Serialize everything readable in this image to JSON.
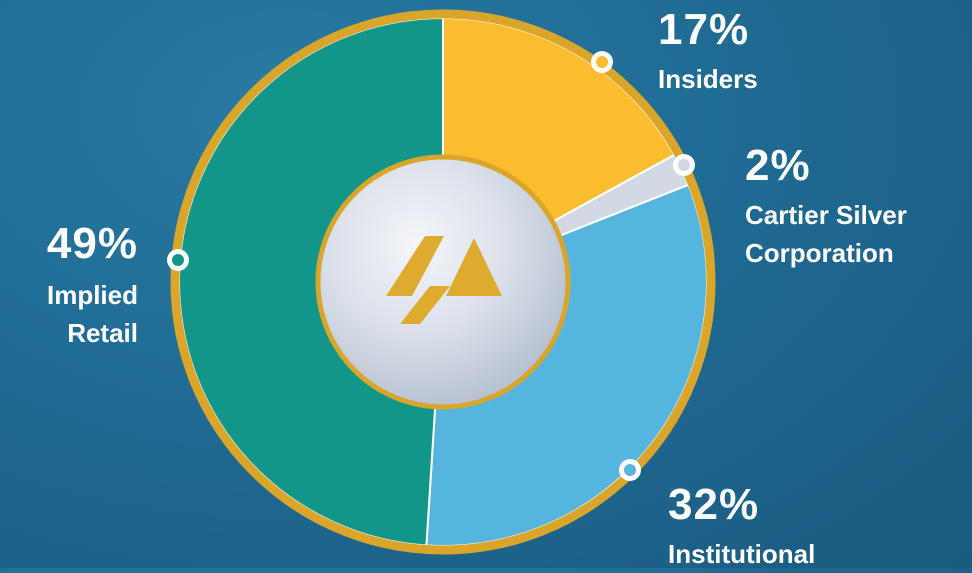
{
  "chart_data": {
    "type": "pie",
    "categories": [
      "Insiders",
      "Cartier Silver Corporation",
      "Institutional",
      "Implied Retail"
    ],
    "values": [
      17,
      2,
      32,
      49
    ],
    "value_labels": [
      "17%",
      "2%",
      "32%",
      "49%"
    ],
    "colors": [
      "#fbbd30",
      "#d3d9e3",
      "#56b5de",
      "#12968a"
    ]
  }
}
